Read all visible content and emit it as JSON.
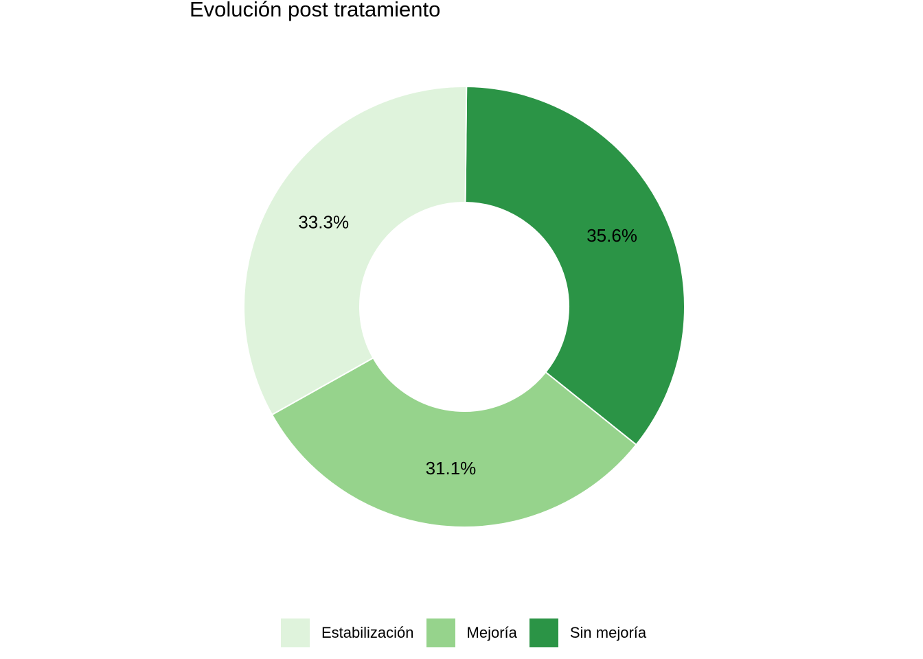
{
  "chart_data": {
    "type": "pie",
    "variant": "donut",
    "title": "Evolución post tratamiento",
    "slices": [
      {
        "label": "Sin mejoría",
        "value": 35.6,
        "display": "35.6%",
        "color": "#2b9446"
      },
      {
        "label": "Mejoría",
        "value": 31.1,
        "display": "31.1%",
        "color": "#96d38c"
      },
      {
        "label": "Estabilización",
        "value": 33.3,
        "display": "33.3%",
        "color": "#dff3dc"
      }
    ],
    "legend": {
      "position": "bottom",
      "items": [
        {
          "label": "Estabilización",
          "color": "#dff3dc"
        },
        {
          "label": "Mejoría",
          "color": "#96d38c"
        },
        {
          "label": "Sin mejoría",
          "color": "#2b9446"
        }
      ]
    }
  }
}
